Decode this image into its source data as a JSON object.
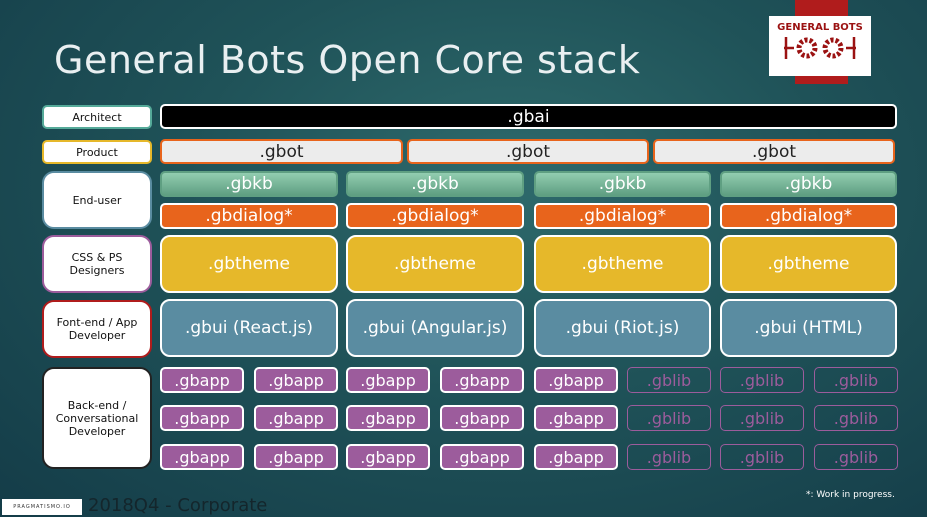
{
  "title": "General Bots Open Core stack",
  "logo": {
    "text": "GENERAL BOTS",
    "icon": "gears-icon",
    "accent": "#b01c1c"
  },
  "roles": [
    "Architect",
    "Product",
    "End-user",
    "CSS & PS Designers",
    "Font-end / App Developer",
    "Back-end / Conversational Developer"
  ],
  "gbai": ".gbai",
  "gbot": [
    ".gbot",
    ".gbot",
    ".gbot"
  ],
  "gbkb": [
    ".gbkb",
    ".gbkb",
    ".gbkb",
    ".gbkb"
  ],
  "gbdialog": [
    ".gbdialog*",
    ".gbdialog*",
    ".gbdialog*",
    ".gbdialog*"
  ],
  "gbtheme": [
    ".gbtheme",
    ".gbtheme",
    ".gbtheme",
    ".gbtheme"
  ],
  "gbui": [
    ".gbui (React.js)",
    ".gbui (Angular.js)",
    ".gbui (Riot.js)",
    ".gbui (HTML)"
  ],
  "packages": [
    [
      ".gbapp",
      ".gbapp",
      ".gbapp",
      ".gbapp",
      ".gbapp",
      ".gblib",
      ".gblib",
      ".gblib"
    ],
    [
      ".gbapp",
      ".gbapp",
      ".gbapp",
      ".gbapp",
      ".gbapp",
      ".gblib",
      ".gblib",
      ".gblib"
    ],
    [
      ".gbapp",
      ".gbapp",
      ".gbapp",
      ".gbapp",
      ".gbapp",
      ".gblib",
      ".gblib",
      ".gblib"
    ]
  ],
  "footer": {
    "brand": "PRAGMATISMO.IO",
    "text": "2018Q4 - Corporate",
    "note": "*: Work in progress."
  }
}
